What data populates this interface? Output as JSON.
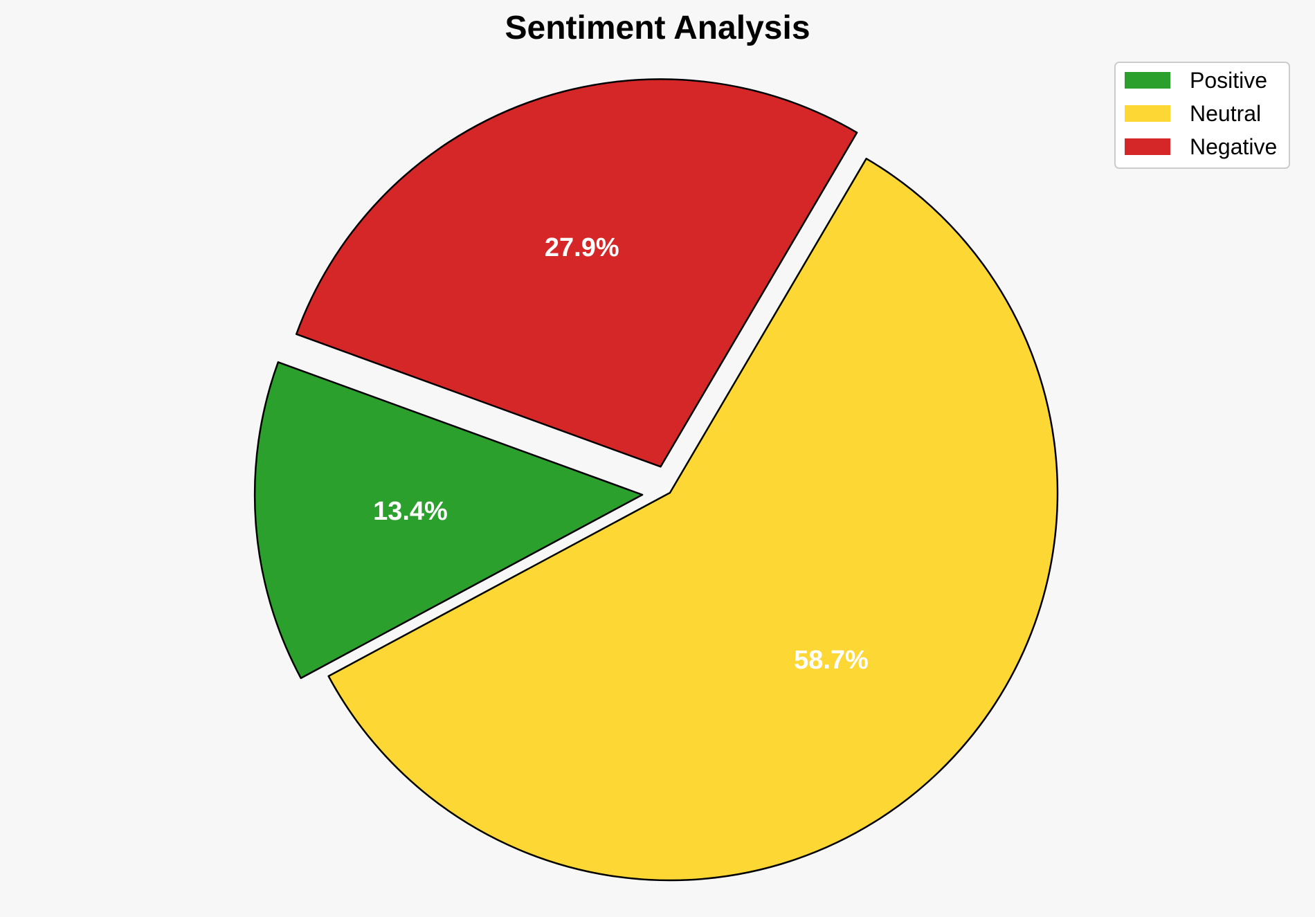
{
  "chart_data": {
    "type": "pie",
    "title": "Sentiment Analysis",
    "categories": [
      "Positive",
      "Neutral",
      "Negative"
    ],
    "values": [
      13.4,
      58.7,
      27.9
    ],
    "value_labels": [
      "13.4%",
      "58.7%",
      "27.9%"
    ],
    "colors": [
      "#2ca02c",
      "#fdd835",
      "#d62728"
    ],
    "explode": [
      true,
      false,
      true
    ],
    "legend_position": "top-right"
  }
}
